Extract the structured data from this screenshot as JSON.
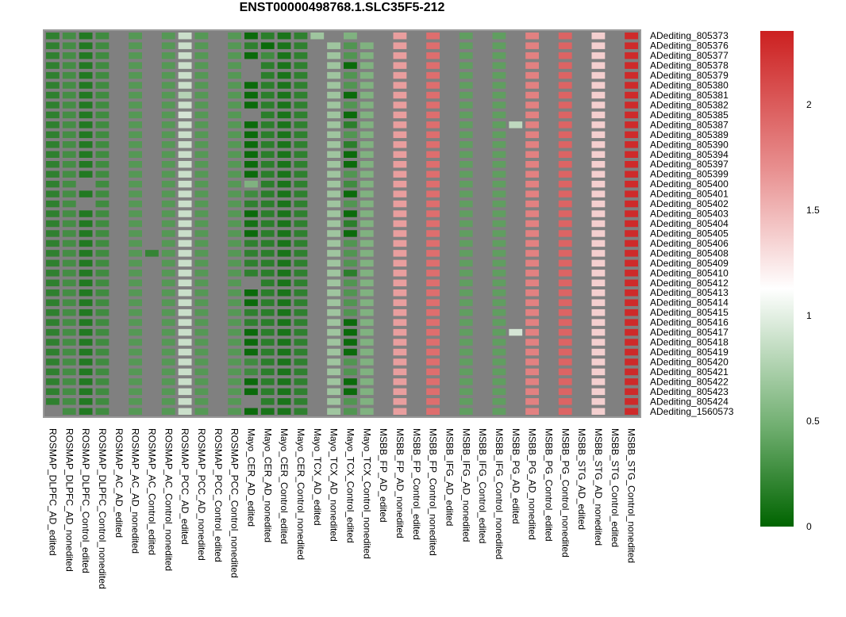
{
  "chart_data": {
    "type": "heatmap",
    "title": "ENST00000498768.1.SLC35F5-212",
    "columns": [
      "ROSMAP_DLPFC_AD_edited",
      "ROSMAP_DLPFC_AD_nonedited",
      "ROSMAP_DLPFC_Control_edited",
      "ROSMAP_DLPFC_Control_nonedited",
      "ROSMAP_AC_AD_edited",
      "ROSMAP_AC_AD_nonedited",
      "ROSMAP_AC_Control_edited",
      "ROSMAP_AC_Control_nonedited",
      "ROSMAP_PCC_AD_edited",
      "ROSMAP_PCC_AD_nonedited",
      "ROSMAP_PCC_Control_edited",
      "ROSMAP_PCC_Control_nonedited",
      "Mayo_CER_AD_edited",
      "Mayo_CER_AD_nonedited",
      "Mayo_CER_Control_edited",
      "Mayo_CER_Control_nonedited",
      "Mayo_TCX_AD_edited",
      "Mayo_TCX_AD_nonedited",
      "Mayo_TCX_Control_edited",
      "Mayo_TCX_Control_nonedited",
      "MSBB_FP_AD_edited",
      "MSBB_FP_AD_nonedited",
      "MSBB_FP_Control_edited",
      "MSBB_FP_Control_nonedited",
      "MSBB_IFG_AD_edited",
      "MSBB_IFG_AD_nonedited",
      "MSBB_IFG_Control_edited",
      "MSBB_IFG_Control_nonedited",
      "MSBB_PG_AD_edited",
      "MSBB_PG_AD_nonedited",
      "MSBB_PG_Control_edited",
      "MSBB_PG_Control_nonedited",
      "MSBB_STG_AD_edited",
      "MSBB_STG_AD_nonedited",
      "MSBB_STG_Control_edited",
      "MSBB_STG_Control_nonedited"
    ],
    "rows": [
      "ADediting_805373",
      "ADediting_805376",
      "ADediting_805377",
      "ADediting_805378",
      "ADediting_805379",
      "ADediting_805380",
      "ADediting_805381",
      "ADediting_805382",
      "ADediting_805385",
      "ADediting_805387",
      "ADediting_805389",
      "ADediting_805390",
      "ADediting_805394",
      "ADediting_805397",
      "ADediting_805399",
      "ADediting_805400",
      "ADediting_805401",
      "ADediting_805402",
      "ADediting_805403",
      "ADediting_805404",
      "ADediting_805405",
      "ADediting_805406",
      "ADediting_805408",
      "ADediting_805409",
      "ADediting_805410",
      "ADediting_805412",
      "ADediting_805413",
      "ADediting_805414",
      "ADediting_805415",
      "ADediting_805416",
      "ADediting_805417",
      "ADediting_805418",
      "ADediting_805419",
      "ADediting_805420",
      "ADediting_805421",
      "ADediting_805422",
      "ADediting_805423",
      "ADediting_805424",
      "ADediting_1560573"
    ],
    "column_defaults": [
      0.22,
      0.32,
      0.16,
      0.3,
      null,
      0.4,
      null,
      0.4,
      0.95,
      0.4,
      null,
      0.4,
      0.22,
      0.2,
      0.12,
      0.22,
      null,
      0.75,
      0.38,
      0.6,
      null,
      1.7,
      null,
      1.95,
      null,
      0.45,
      null,
      0.45,
      null,
      1.85,
      null,
      2.0,
      null,
      1.45,
      null,
      2.3
    ],
    "row_overrides": {
      "ADediting_805373": {
        "12": 0.05,
        "16": 0.75,
        "17": null,
        "18": 0.6,
        "19": null
      },
      "ADediting_805376": {
        "8": 0.95,
        "13": 0.05
      },
      "ADediting_805377": {
        "8": 0.95,
        "12": 0.05,
        "13": 0.3
      },
      "ADediting_805378": {
        "8": 0.95,
        "12": null,
        "18": 0.05
      },
      "ADediting_805379": {
        "8": 0.95,
        "12": null
      },
      "ADediting_805380": {
        "12": 0.05
      },
      "ADediting_805381": {
        "8": 0.85,
        "12": 0.05,
        "18": 0.05
      },
      "ADediting_805382": {
        "12": 0.05
      },
      "ADediting_805385": {
        "8": 1.0,
        "12": null,
        "18": 0.05
      },
      "ADediting_805387": {
        "12": 0.05,
        "18": 0.2,
        "28": 0.9
      },
      "ADediting_805389": {
        "12": 0.05
      },
      "ADediting_805390": {
        "12": 0.05,
        "18": 0.2
      },
      "ADediting_805394": {
        "12": 0.05,
        "18": 0.05
      },
      "ADediting_805397": {
        "12": 0.05,
        "18": 0.05
      },
      "ADediting_805399": {
        "12": 0.05
      },
      "ADediting_805400": {
        "2": null,
        "12": 0.6,
        "18": 0.3
      },
      "ADediting_805401": {
        "12": 0.3,
        "18": 0.05
      },
      "ADediting_805402": {
        "2": null
      },
      "ADediting_805403": {
        "12": 0.05,
        "18": 0.05
      },
      "ADediting_805404": {
        "12": 0.1,
        "18": 0.2
      },
      "ADediting_805405": {
        "12": 0.05,
        "18": 0.05
      },
      "ADediting_805408": {
        "6": 0.25
      },
      "ADediting_805410": {
        "18": 0.2
      },
      "ADediting_805412": {
        "12": null
      },
      "ADediting_805413": {
        "12": 0.05
      },
      "ADediting_805414": {
        "12": 0.05
      },
      "ADediting_805416": {
        "18": 0.05
      },
      "ADediting_805417": {
        "12": 0.05,
        "18": 0.05,
        "28": 1.0
      },
      "ADediting_805418": {
        "12": 0.05,
        "18": 0.05
      },
      "ADediting_805419": {
        "12": 0.05,
        "18": 0.05
      },
      "ADediting_805420": {
        "12": 0.3
      },
      "ADediting_805421": {
        "12": 0.3
      },
      "ADediting_805422": {
        "12": 0.05,
        "18": 0.05
      },
      "ADediting_805423": {
        "12": 0.05,
        "18": 0.05
      },
      "ADediting_805424": {
        "12": null
      },
      "ADediting_1560573": {
        "0": null,
        "12": 0.05,
        "13": 0.12
      }
    },
    "value_range": [
      0,
      2.35
    ],
    "missing_color": "#808080",
    "colorbar": {
      "ticks": [
        0,
        0.5,
        1,
        1.5,
        2
      ],
      "tick_labels": [
        "0",
        "0.5",
        "1",
        "1.5",
        "2"
      ],
      "colors": [
        "#006400",
        "#ffffff",
        "#cc2020"
      ]
    }
  }
}
